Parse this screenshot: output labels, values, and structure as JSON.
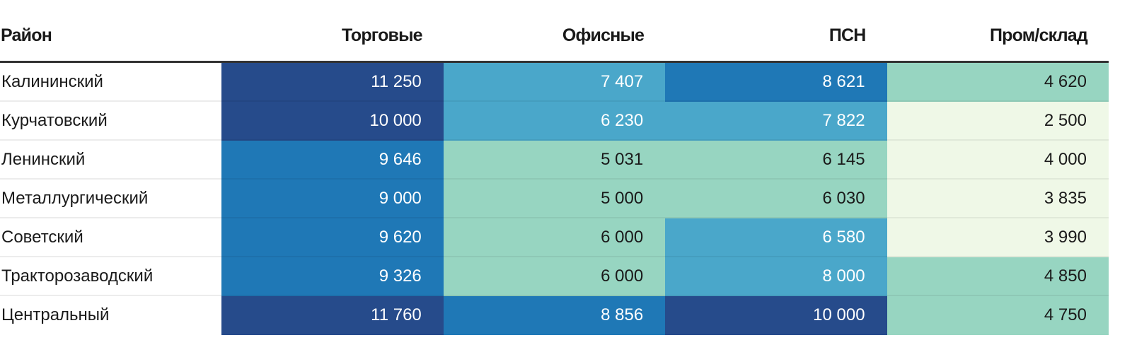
{
  "chart_data": {
    "type": "table",
    "title": "",
    "columns": [
      "Район",
      "Торговые",
      "Офисные",
      "ПСН",
      "Пром/склад"
    ],
    "rows": [
      {
        "label": "Калининский",
        "values": [
          "11 250",
          "7 407",
          "8 621",
          "4 620"
        ],
        "levels": [
          4,
          2,
          3,
          1
        ]
      },
      {
        "label": "Курчатовский",
        "values": [
          "10 000",
          "6 230",
          "7 822",
          "2 500"
        ],
        "levels": [
          4,
          2,
          2,
          0
        ]
      },
      {
        "label": "Ленинский",
        "values": [
          "9 646",
          "5 031",
          "6 145",
          "4 000"
        ],
        "levels": [
          3,
          1,
          1,
          0
        ]
      },
      {
        "label": "Металлургический",
        "values": [
          "9 000",
          "5 000",
          "6 030",
          "3 835"
        ],
        "levels": [
          3,
          1,
          1,
          0
        ]
      },
      {
        "label": "Советский",
        "values": [
          "9 620",
          "6 000",
          "6 580",
          "3 990"
        ],
        "levels": [
          3,
          1,
          2,
          0
        ]
      },
      {
        "label": "Тракторозаводский",
        "values": [
          "9 326",
          "6 000",
          "8 000",
          "4 850"
        ],
        "levels": [
          3,
          1,
          2,
          1
        ]
      },
      {
        "label": "Центральный",
        "values": [
          "11 760",
          "8 856",
          "10 000",
          "4 750"
        ],
        "levels": [
          4,
          3,
          4,
          1
        ]
      }
    ],
    "color_scale": [
      "#eff8e7",
      "#97d5c1",
      "#4aa7ca",
      "#1f78b6",
      "#264b8b"
    ],
    "text_colors": [
      "#1a1a1a",
      "#1a1a1a",
      "#ffffff",
      "#ffffff",
      "#ffffff"
    ]
  }
}
